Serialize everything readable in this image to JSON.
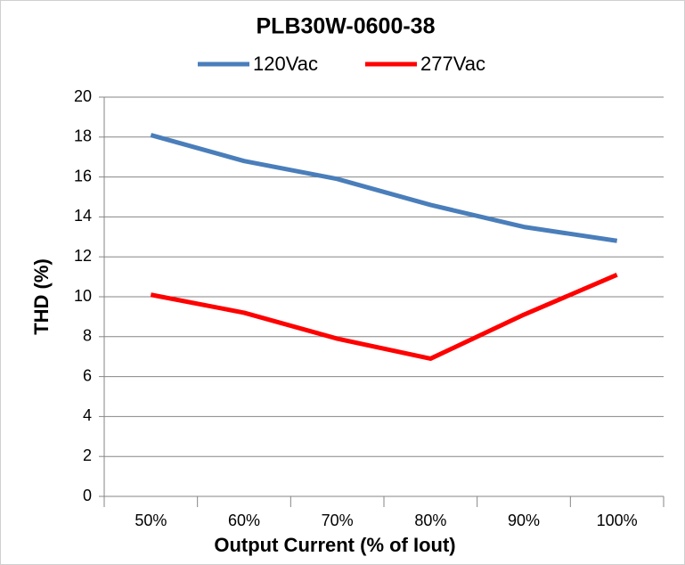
{
  "chart_data": {
    "type": "line",
    "title": "PLB30W-0600-38",
    "x_label": "Output Current (% of Iout)",
    "y_label": "THD (%)",
    "categories": [
      "50%",
      "60%",
      "70%",
      "80%",
      "90%",
      "100%"
    ],
    "series": [
      {
        "name": "120Vac",
        "color": "#4a7ebb",
        "values": [
          18.1,
          16.8,
          15.9,
          14.6,
          13.5,
          12.8
        ]
      },
      {
        "name": "277Vac",
        "color": "#ff0000",
        "values": [
          10.1,
          9.2,
          7.9,
          6.9,
          9.1,
          11.1
        ]
      }
    ],
    "ylim": [
      0,
      20
    ],
    "yticks": [
      0,
      2,
      4,
      6,
      8,
      10,
      12,
      14,
      16,
      18,
      20
    ],
    "grid": true,
    "legend": "top"
  }
}
